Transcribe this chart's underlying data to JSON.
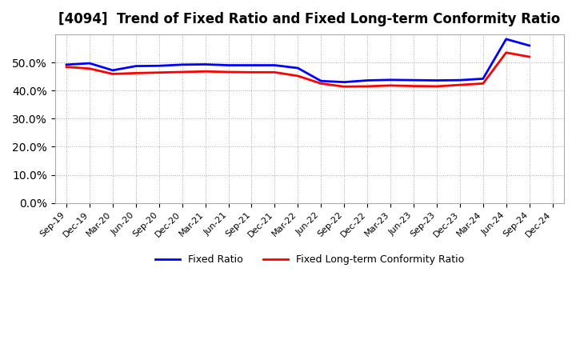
{
  "title": "[4094]  Trend of Fixed Ratio and Fixed Long-term Conformity Ratio",
  "x_labels": [
    "Sep-19",
    "Dec-19",
    "Mar-20",
    "Jun-20",
    "Sep-20",
    "Dec-20",
    "Mar-21",
    "Jun-21",
    "Sep-21",
    "Dec-21",
    "Mar-22",
    "Jun-22",
    "Sep-22",
    "Dec-22",
    "Mar-23",
    "Jun-23",
    "Sep-23",
    "Dec-23",
    "Mar-24",
    "Jun-24",
    "Sep-24",
    "Dec-24"
  ],
  "fixed_ratio": [
    0.492,
    0.497,
    0.472,
    0.487,
    0.488,
    0.492,
    0.493,
    0.49,
    0.49,
    0.49,
    0.48,
    0.434,
    0.43,
    0.436,
    0.438,
    0.437,
    0.436,
    0.437,
    0.442,
    0.583,
    0.56,
    null
  ],
  "fixed_lt_ratio": [
    0.484,
    0.478,
    0.459,
    0.462,
    0.464,
    0.466,
    0.468,
    0.466,
    0.465,
    0.465,
    0.452,
    0.425,
    0.414,
    0.415,
    0.418,
    0.416,
    0.415,
    0.42,
    0.425,
    0.535,
    0.52,
    null
  ],
  "ylim": [
    0.0,
    0.6
  ],
  "yticks": [
    0.0,
    0.1,
    0.2,
    0.3,
    0.4,
    0.5
  ],
  "line_color_fixed": "#0000FF",
  "line_color_lt": "#FF0000",
  "background_color": "#FFFFFF",
  "grid_color": "#AAAAAA",
  "legend_fixed": "Fixed Ratio",
  "legend_lt": "Fixed Long-term Conformity Ratio"
}
